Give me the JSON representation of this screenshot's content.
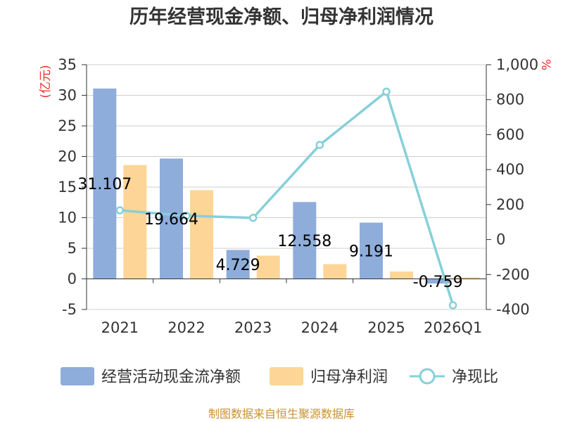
{
  "chart_data": {
    "type": "bar+line",
    "title": "历年经营现金净额、归母净利润情况",
    "categories": [
      "2021",
      "2022",
      "2023",
      "2024",
      "2025",
      "2026Q1"
    ],
    "series": [
      {
        "name": "经营活动现金流净额",
        "kind": "bar",
        "axis": "left",
        "color": "#8eaddb",
        "values": [
          31.107,
          19.664,
          4.729,
          12.558,
          9.191,
          -0.759
        ]
      },
      {
        "name": "归母净利润",
        "kind": "bar",
        "axis": "left",
        "color": "#fdd596",
        "values": [
          18.6,
          14.5,
          3.8,
          2.4,
          1.2,
          0.25
        ]
      },
      {
        "name": "净现比",
        "kind": "line",
        "axis": "right",
        "color": "#86d0d8",
        "values": [
          167,
          136,
          124,
          541,
          846,
          -376
        ]
      }
    ],
    "data_labels": [
      "31.107",
      "19.664",
      "4.729",
      "12.558",
      "9.191",
      "-0.759"
    ],
    "y_left": {
      "label": "(亿元)",
      "min": -5,
      "max": 35,
      "ticks": [
        "-5",
        "0",
        "5",
        "10",
        "15",
        "20",
        "25",
        "30",
        "35"
      ]
    },
    "y_right": {
      "label": "%",
      "min": -400,
      "max": 1000,
      "ticks": [
        "-400",
        "-200",
        "0",
        "200",
        "400",
        "600",
        "800",
        "1,000"
      ]
    },
    "legend": {
      "position": "bottom"
    },
    "source": "制图数据来自恒生聚源数据库"
  }
}
